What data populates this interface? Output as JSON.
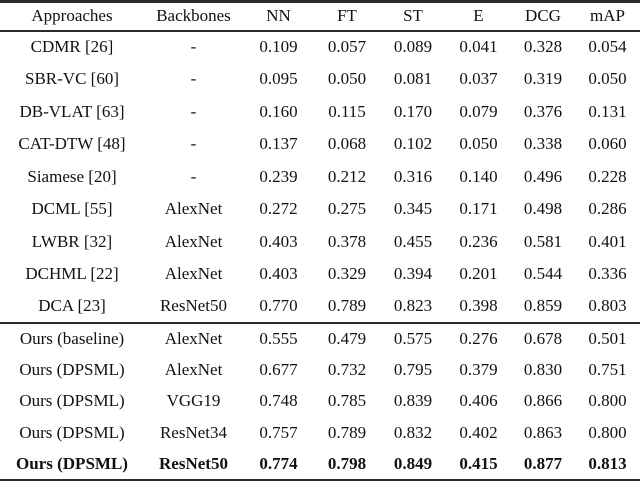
{
  "page": {
    "background": "#ffffff",
    "text_color": "#111111",
    "rule_color": "#2b2b2b"
  },
  "table": {
    "columns": [
      "Approaches",
      "Backbones",
      "NN",
      "FT",
      "ST",
      "E",
      "DCG",
      "mAP"
    ],
    "rows": [
      {
        "approach": "CDMR [26]",
        "backbone": "-",
        "values": [
          "0.109",
          "0.057",
          "0.089",
          "0.041",
          "0.328",
          "0.054"
        ],
        "bold": false,
        "group": 1
      },
      {
        "approach": "SBR-VC [60]",
        "backbone": "-",
        "values": [
          "0.095",
          "0.050",
          "0.081",
          "0.037",
          "0.319",
          "0.050"
        ],
        "bold": false,
        "group": 1
      },
      {
        "approach": "DB-VLAT [63]",
        "backbone": "-",
        "values": [
          "0.160",
          "0.115",
          "0.170",
          "0.079",
          "0.376",
          "0.131"
        ],
        "bold": false,
        "group": 1
      },
      {
        "approach": "CAT-DTW [48]",
        "backbone": "-",
        "values": [
          "0.137",
          "0.068",
          "0.102",
          "0.050",
          "0.338",
          "0.060"
        ],
        "bold": false,
        "group": 1
      },
      {
        "approach": "Siamese [20]",
        "backbone": "-",
        "values": [
          "0.239",
          "0.212",
          "0.316",
          "0.140",
          "0.496",
          "0.228"
        ],
        "bold": false,
        "group": 1
      },
      {
        "approach": "DCML [55]",
        "backbone": "AlexNet",
        "values": [
          "0.272",
          "0.275",
          "0.345",
          "0.171",
          "0.498",
          "0.286"
        ],
        "bold": false,
        "group": 1
      },
      {
        "approach": "LWBR [32]",
        "backbone": "AlexNet",
        "values": [
          "0.403",
          "0.378",
          "0.455",
          "0.236",
          "0.581",
          "0.401"
        ],
        "bold": false,
        "group": 1
      },
      {
        "approach": "DCHML [22]",
        "backbone": "AlexNet",
        "values": [
          "0.403",
          "0.329",
          "0.394",
          "0.201",
          "0.544",
          "0.336"
        ],
        "bold": false,
        "group": 1
      },
      {
        "approach": "DCA [23]",
        "backbone": "ResNet50",
        "values": [
          "0.770",
          "0.789",
          "0.823",
          "0.398",
          "0.859",
          "0.803"
        ],
        "bold": false,
        "group": 1
      },
      {
        "approach": "Ours (baseline)",
        "backbone": "AlexNet",
        "values": [
          "0.555",
          "0.479",
          "0.575",
          "0.276",
          "0.678",
          "0.501"
        ],
        "bold": false,
        "group": 2
      },
      {
        "approach": "Ours (DPSML)",
        "backbone": "AlexNet",
        "values": [
          "0.677",
          "0.732",
          "0.795",
          "0.379",
          "0.830",
          "0.751"
        ],
        "bold": false,
        "group": 2
      },
      {
        "approach": "Ours (DPSML)",
        "backbone": "VGG19",
        "values": [
          "0.748",
          "0.785",
          "0.839",
          "0.406",
          "0.866",
          "0.800"
        ],
        "bold": false,
        "group": 2
      },
      {
        "approach": "Ours (DPSML)",
        "backbone": "ResNet34",
        "values": [
          "0.757",
          "0.789",
          "0.832",
          "0.402",
          "0.863",
          "0.800"
        ],
        "bold": false,
        "group": 2
      },
      {
        "approach": "Ours (DPSML)",
        "backbone": "ResNet50",
        "values": [
          "0.774",
          "0.798",
          "0.849",
          "0.415",
          "0.877",
          "0.813"
        ],
        "bold": true,
        "group": 2
      }
    ]
  }
}
